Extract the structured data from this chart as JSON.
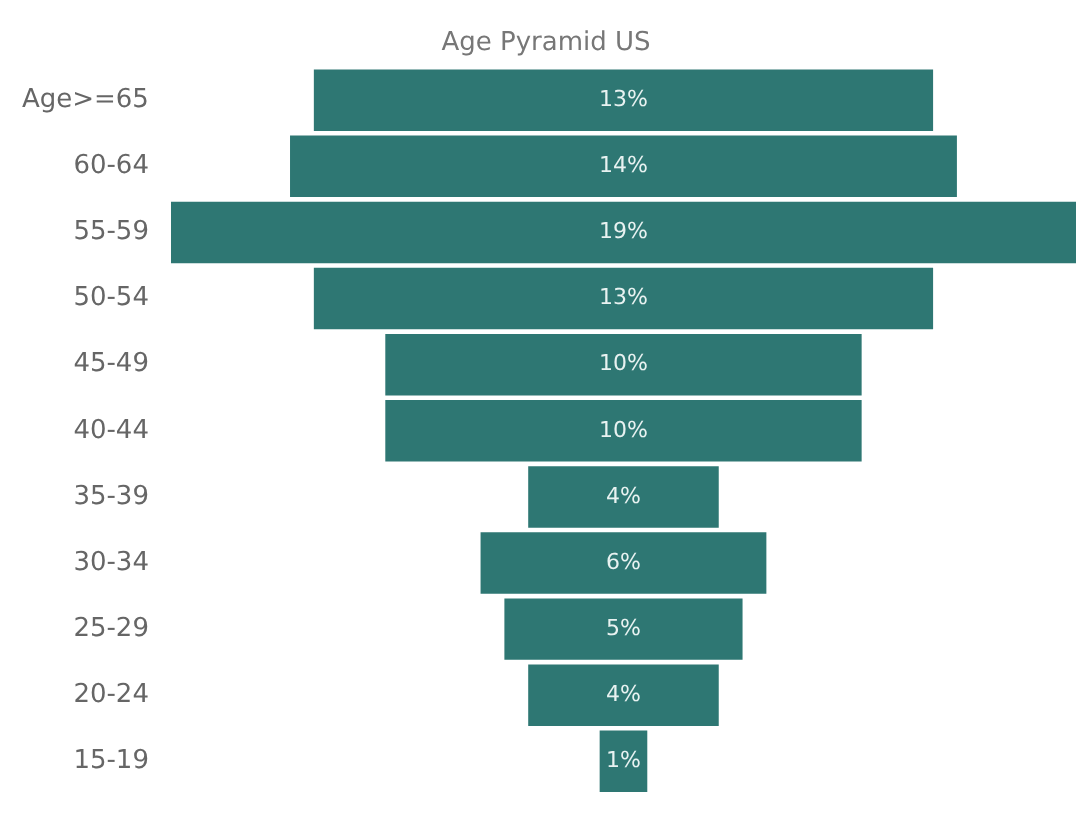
{
  "chart_data": {
    "type": "other",
    "title": "Age Pyramid US",
    "categories": [
      "Age>=65",
      "60-64",
      "55-59",
      "50-54",
      "45-49",
      "40-44",
      "35-39",
      "30-34",
      "25-29",
      "20-24",
      "15-19"
    ],
    "values": [
      13,
      14,
      19,
      13,
      10,
      10,
      4,
      6,
      5,
      4,
      1
    ],
    "value_labels": [
      "13%",
      "14%",
      "19%",
      "13%",
      "10%",
      "10%",
      "4%",
      "6%",
      "5%",
      "4%",
      "1%"
    ],
    "color": "#2e7773"
  }
}
